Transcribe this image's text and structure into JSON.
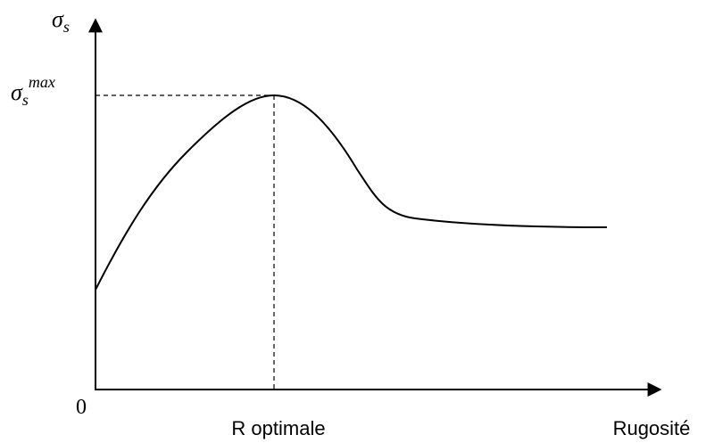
{
  "y_axis_label": {
    "symbol": "σ",
    "subscript": "s"
  },
  "max_label": {
    "symbol": "σ",
    "subscript": "s",
    "superscript": "max"
  },
  "origin_label": "0",
  "x_marker_label": "R optimale",
  "x_axis_label": "Rugosité"
}
